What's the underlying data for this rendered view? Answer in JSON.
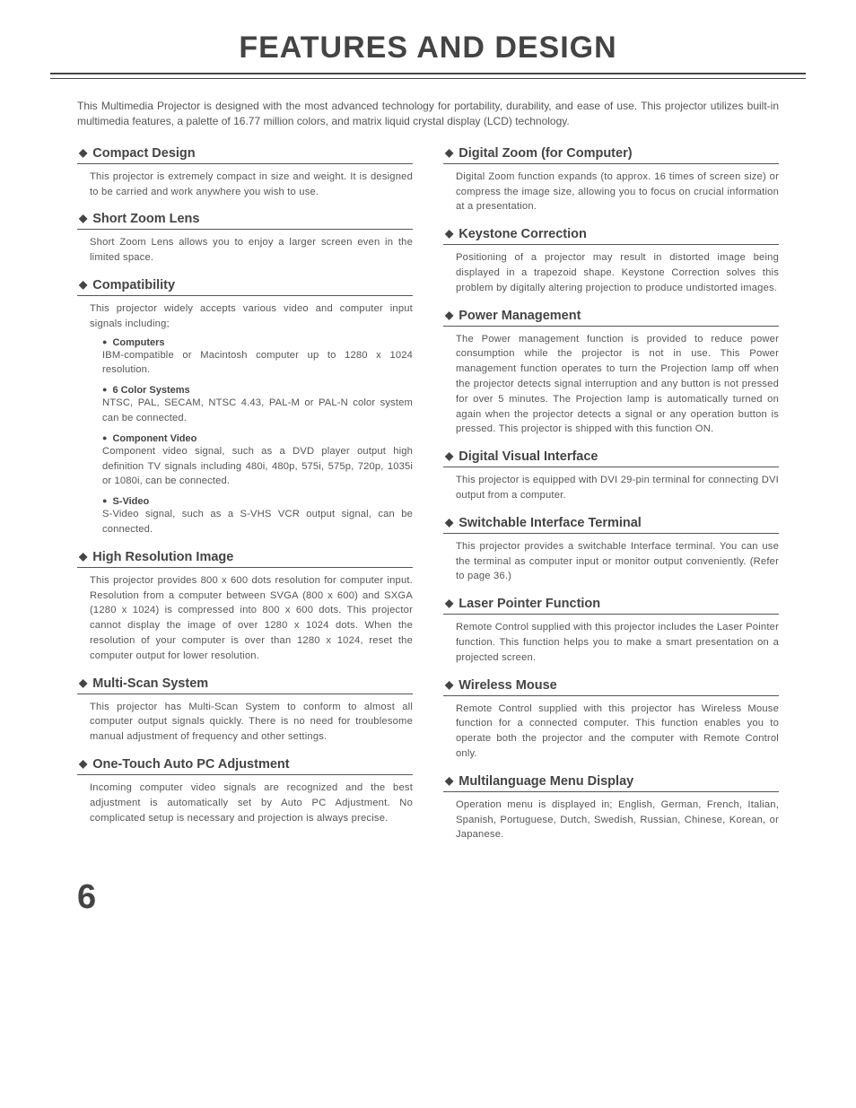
{
  "page": {
    "title": "FEATURES AND DESIGN",
    "intro": "This Multimedia Projector is designed with the most advanced technology for portability, durability, and ease of use.  This projector utilizes built-in multimedia features, a palette of 16.77 million colors, and matrix liquid crystal display (LCD) technology.",
    "page_number": "6"
  },
  "left": [
    {
      "title": "Compact Design",
      "body": "This projector is extremely compact in size and weight.  It is designed to be carried and work anywhere you wish to use."
    },
    {
      "title": "Short Zoom Lens",
      "body": "Short Zoom Lens allows you to enjoy a larger screen even in the limited space."
    },
    {
      "title": "Compatibility",
      "body": "This projector widely accepts various video and computer input signals including;",
      "subs": [
        {
          "title": "Computers",
          "body": "IBM-compatible or Macintosh computer up to 1280 x 1024 resolution."
        },
        {
          "title": "6 Color Systems",
          "body": "NTSC, PAL, SECAM, NTSC 4.43, PAL-M or PAL-N color system can be connected."
        },
        {
          "title": "Component Video",
          "body": "Component video signal, such as a DVD player output high definition TV signals including 480i, 480p, 575i, 575p, 720p, 1035i or 1080i, can be connected."
        },
        {
          "title": "S-Video",
          "body": "S-Video signal, such as a S-VHS VCR output signal, can be connected."
        }
      ]
    },
    {
      "title": "High Resolution Image",
      "body": "This projector provides 800 x 600 dots resolution for computer input.  Resolution from a computer between SVGA (800 x 600) and SXGA (1280 x 1024) is compressed into 800 x 600 dots.  This projector cannot display the image of over 1280 x 1024 dots.  When the resolution of your computer is over than 1280 x 1024, reset the computer output for lower resolution."
    },
    {
      "title": "Multi-Scan System",
      "body": "This projector has Multi-Scan System to conform to almost all computer output signals quickly.  There is no need for troublesome manual adjustment of frequency and other settings."
    },
    {
      "title": "One-Touch Auto PC Adjustment",
      "body": "Incoming computer video signals are recognized and the best adjustment is automatically set by Auto PC Adjustment.  No complicated setup is necessary and projection is always precise."
    }
  ],
  "right": [
    {
      "title": "Digital Zoom (for Computer)",
      "body": "Digital Zoom function expands (to approx. 16 times of screen size) or compress the image size, allowing you to focus on crucial information at a presentation."
    },
    {
      "title": "Keystone Correction",
      "body": "Positioning of a projector may result in distorted image being displayed in a trapezoid shape.  Keystone Correction solves this problem by digitally altering projection to produce undistorted images."
    },
    {
      "title": "Power Management",
      "body": "The Power management function is provided to reduce power consumption while the projector is not in use.\nThis Power management function operates to turn the Projection lamp off when the projector detects signal interruption and any button is not pressed for over 5 minutes.  The Projection lamp is automatically turned on again when the projector detects a signal or any operation button is pressed.\nThis projector is shipped with this function ON."
    },
    {
      "title": "Digital Visual Interface",
      "body": "This projector is equipped with DVI 29-pin terminal for connecting DVI output from a computer."
    },
    {
      "title": "Switchable Interface Terminal",
      "body": "This projector provides a switchable Interface terminal.  You can use the terminal as computer input or monitor output conveniently.  (Refer to page 36.)"
    },
    {
      "title": "Laser Pointer Function",
      "body": "Remote Control supplied with this projector includes the Laser Pointer function.  This function helps you to make a smart presentation on a projected screen."
    },
    {
      "title": "Wireless Mouse",
      "body": "Remote Control supplied with this projector has Wireless Mouse function for a connected computer.  This function enables you to operate both the projector and the computer with Remote Control only."
    },
    {
      "title": "Multilanguage Menu Display",
      "body": "Operation menu is displayed in; English, German, French, Italian, Spanish, Portuguese, Dutch, Swedish, Russian, Chinese, Korean, or Japanese."
    }
  ]
}
